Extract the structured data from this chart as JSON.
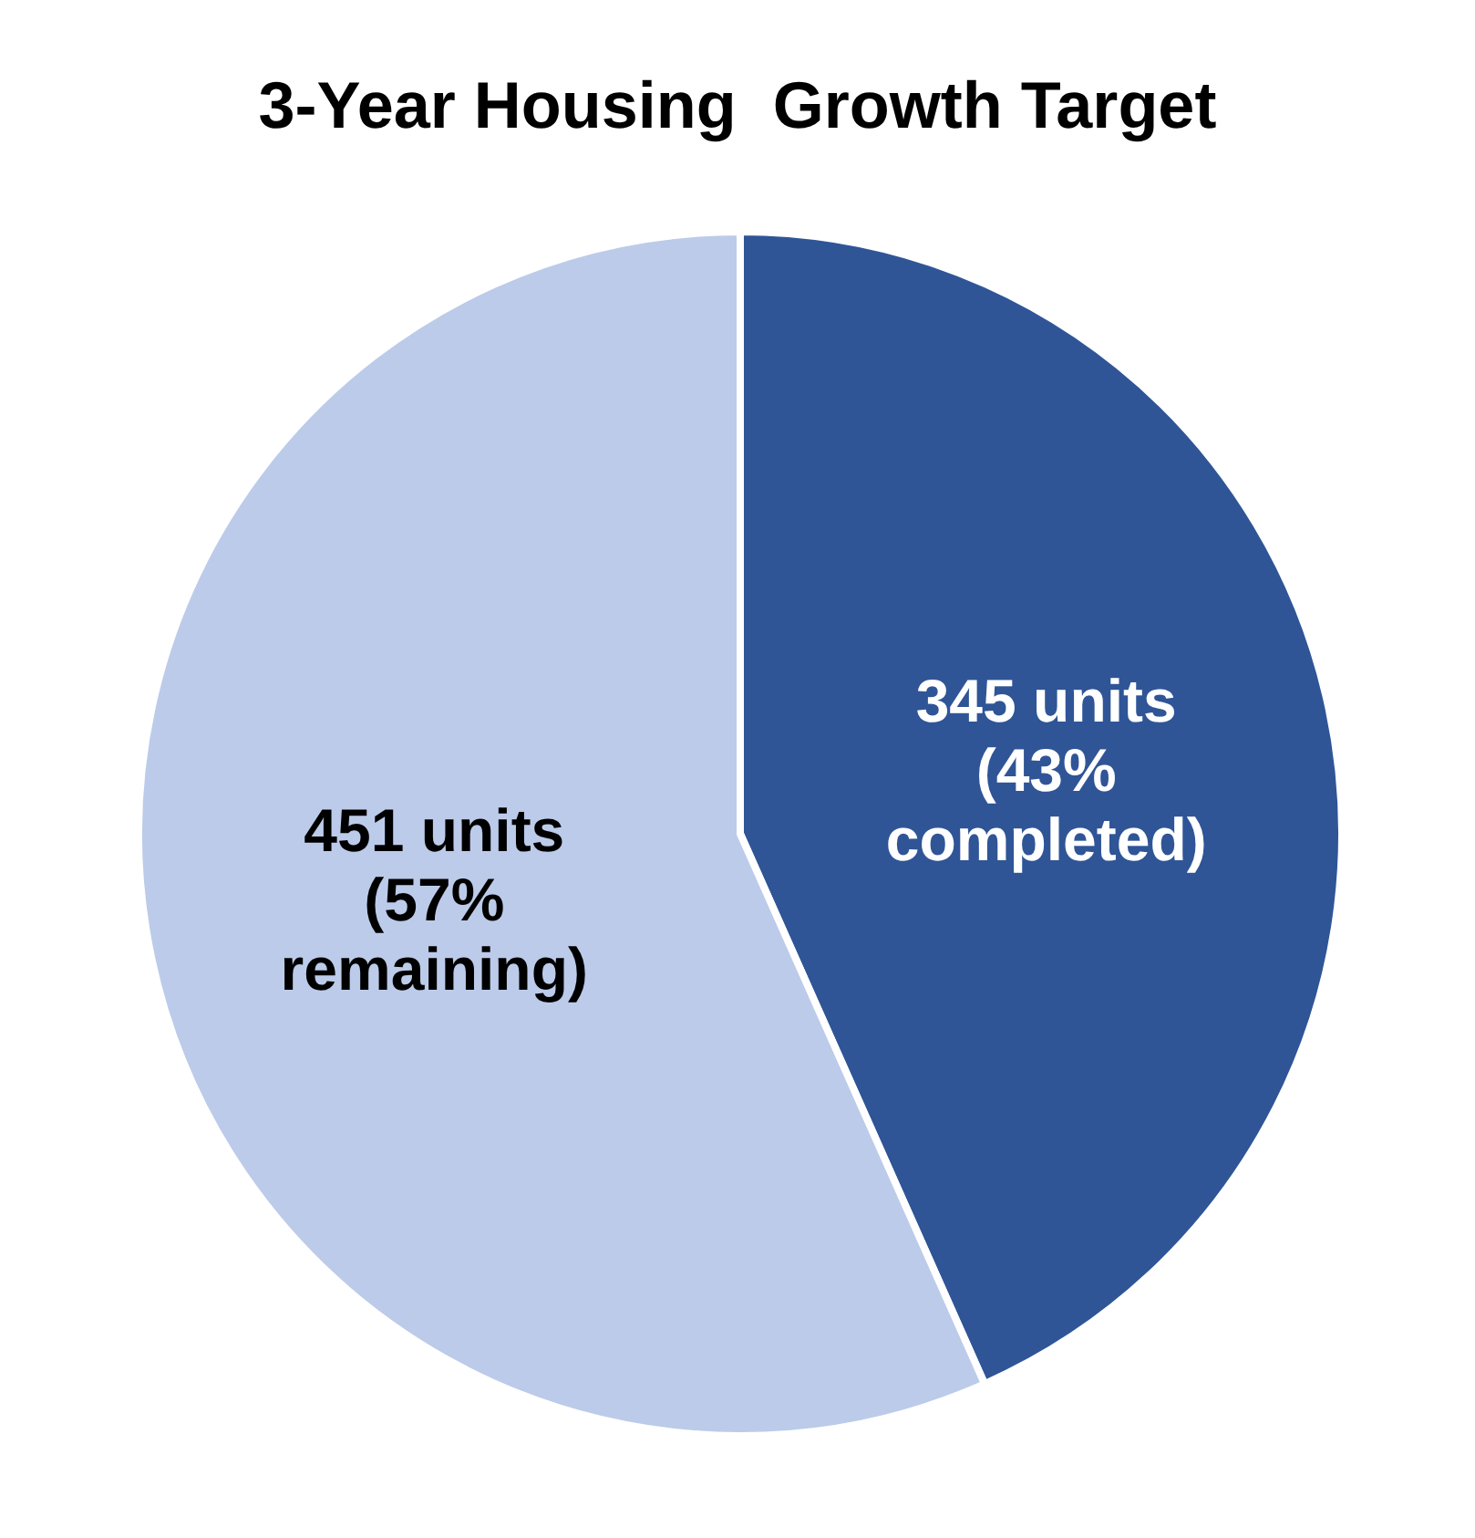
{
  "chart_data": {
    "type": "pie",
    "title": "3-Year Housing  Growth Target",
    "categories": [
      null,
      null
    ],
    "values": [
      345,
      451
    ],
    "colors": [
      "#2f5597",
      "#bccbe9"
    ],
    "value_labels": [
      "345 units\n(43%\ncompleted)",
      "451 units\n(57%\nremaining)"
    ]
  }
}
